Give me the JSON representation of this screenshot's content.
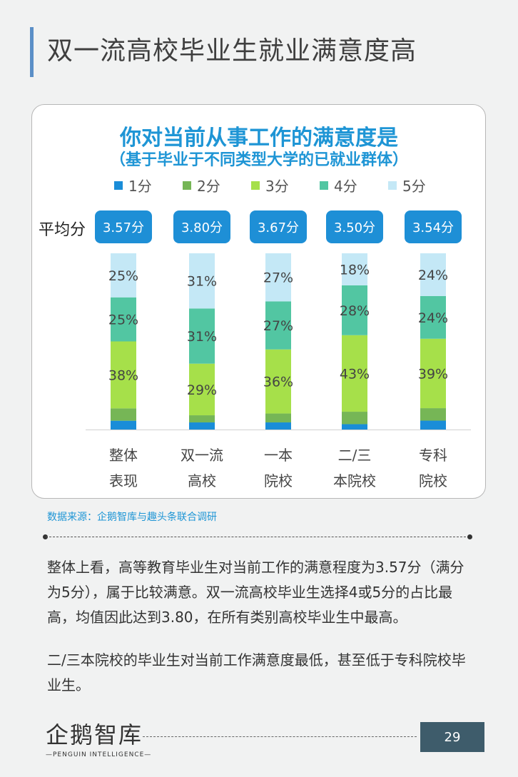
{
  "page": {
    "title": "双一流高校毕业生就业满意度高",
    "source": "数据来源：企鹅智库与趣头条联合调研",
    "paragraphs": [
      "整体上看，高等教育毕业生对当前工作的满意程度为3.57分（满分为5分），属于比较满意。双一流高校毕业生选择4或5分的占比最高，均值因此达到3.80，在所有类别高校毕业生中最高。",
      "二/三本院校的毕业生对当前工作满意度最低，甚至低于专科院校毕业生。"
    ],
    "logo": {
      "name": "企鹅智库",
      "sub": "—PENGUIN INTELLIGENCE—"
    },
    "page_number": "29"
  },
  "chart_data": {
    "type": "bar",
    "stacked": true,
    "title": "你对当前从事工作的满意度是",
    "subtitle": "（基于毕业于不同类型大学的已就业群体）",
    "avg_label": "平均分",
    "categories": [
      [
        "整体",
        "表现"
      ],
      [
        "双一流",
        "高校"
      ],
      [
        "一本",
        "院校"
      ],
      [
        "二/三",
        "本院校"
      ],
      [
        "专科",
        "院校"
      ]
    ],
    "averages": [
      "3.57分",
      "3.80分",
      "3.67分",
      "3.50分",
      "3.54分"
    ],
    "series": [
      {
        "name": "1分",
        "color": "#1a8dd8",
        "values": [
          5,
          4,
          4,
          3,
          5
        ]
      },
      {
        "name": "2分",
        "color": "#76b656",
        "values": [
          7,
          4,
          5,
          7,
          7
        ]
      },
      {
        "name": "3分",
        "color": "#a6e04a",
        "values": [
          38,
          29,
          36,
          43,
          39
        ]
      },
      {
        "name": "4分",
        "color": "#52c6a2",
        "values": [
          25,
          31,
          27,
          28,
          24
        ]
      },
      {
        "name": "5分",
        "color": "#c4e8f6",
        "values": [
          25,
          31,
          27,
          18,
          24
        ]
      }
    ],
    "data_labels": [
      [
        "",
        "",
        "38%",
        "25%",
        "25%"
      ],
      [
        "",
        "",
        "29%",
        "31%",
        "31%"
      ],
      [
        "",
        "",
        "36%",
        "27%",
        "27%"
      ],
      [
        "",
        "",
        "43%",
        "28%",
        "18%"
      ],
      [
        "",
        "",
        "39%",
        "24%",
        "24%"
      ]
    ],
    "ylim": [
      0,
      100
    ]
  }
}
